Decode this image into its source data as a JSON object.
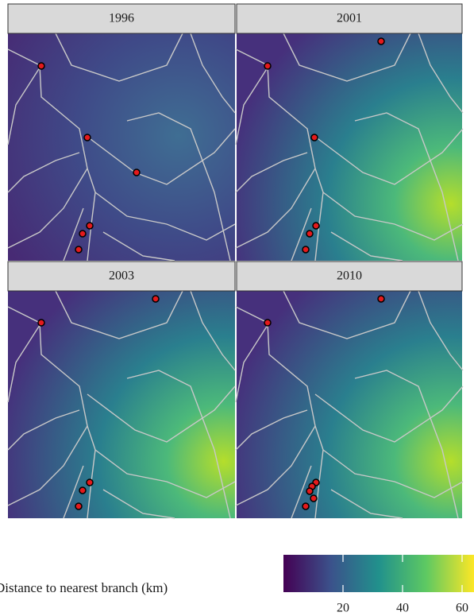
{
  "panels": [
    {
      "title": "1996"
    },
    {
      "title": "2001"
    },
    {
      "title": "2003"
    },
    {
      "title": "2010"
    }
  ],
  "legend": {
    "title": "Distance to nearest branch (km)",
    "lim": [
      0,
      64
    ],
    "ticks": [
      20,
      40,
      60
    ]
  }
}
